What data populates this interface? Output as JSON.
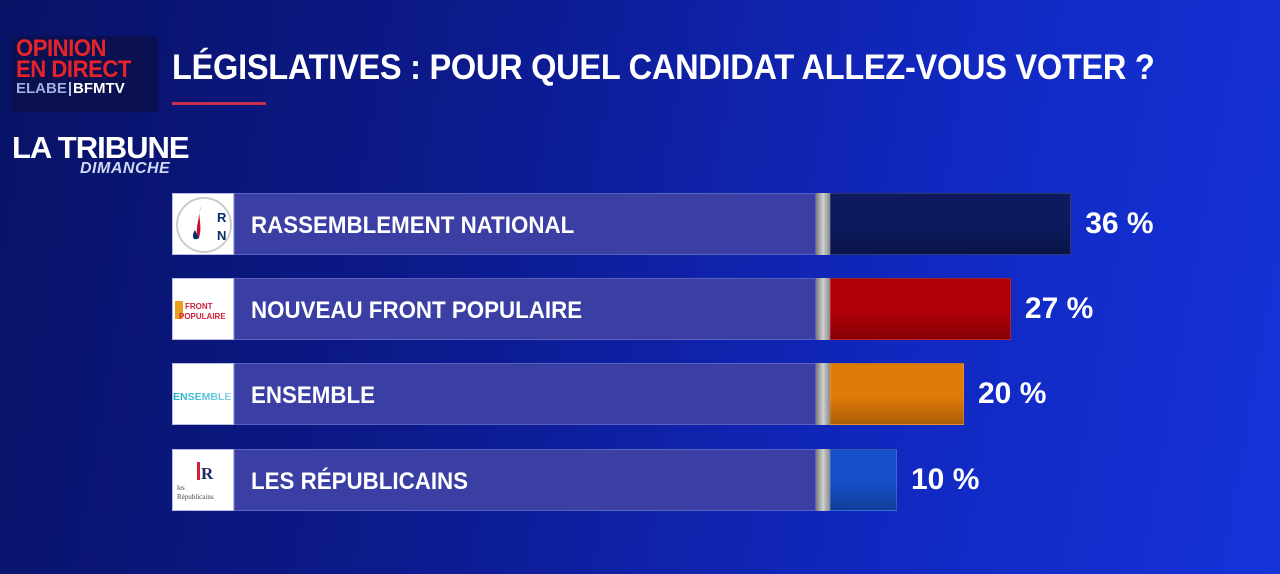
{
  "brand": {
    "line1": "OPINION",
    "line2": "EN DIRECT",
    "elabe": "ELABE",
    "sep": "|",
    "bfm": "BFMTV"
  },
  "header": {
    "title": "LÉGISLATIVES : POUR QUEL CANDIDAT ALLEZ-VOUS VOTER ?"
  },
  "partner": {
    "name": "LA TRIBUNE",
    "sub": "DIMANCHE"
  },
  "chart_data": {
    "type": "bar",
    "orientation": "horizontal",
    "title": "LÉGISLATIVES : POUR QUEL CANDIDAT ALLEZ-VOUS VOTER ?",
    "unit": "%",
    "categories": [
      "RASSEMBLEMENT NATIONAL",
      "NOUVEAU FRONT POPULAIRE",
      "ENSEMBLE",
      "LES RÉPUBLICAINS"
    ],
    "values": [
      36,
      27,
      20,
      10
    ],
    "labels": [
      "36 %",
      "27 %",
      "20 %",
      "10 %"
    ],
    "colors": [
      "#0d1a5e",
      "#b00008",
      "#e07a08",
      "#1650c8"
    ],
    "logos": [
      "RN",
      "FRONT POPULAIRE",
      "ENSEMBLE",
      "LR les Républicains"
    ],
    "grid": false,
    "legend": "none"
  }
}
